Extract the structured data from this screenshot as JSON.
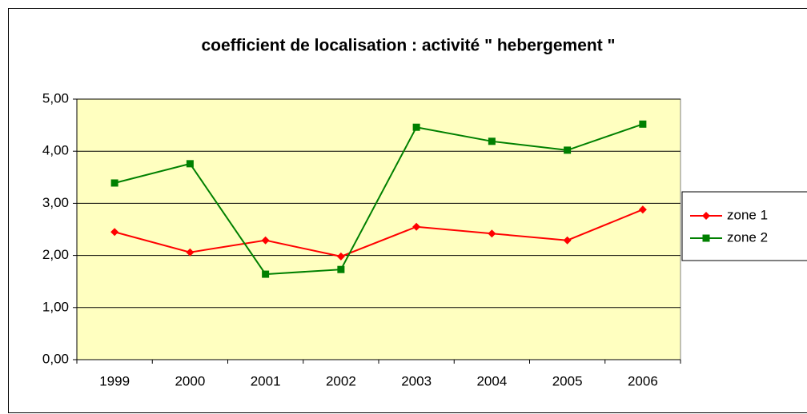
{
  "chart_data": {
    "type": "line",
    "title": "coefficient de localisation : activité \" hebergement \"",
    "categories": [
      "1999",
      "2000",
      "2001",
      "2002",
      "2003",
      "2004",
      "2005",
      "2006"
    ],
    "series": [
      {
        "name": "zone 1",
        "color": "#ff0000",
        "marker": "diamond",
        "values": [
          2.45,
          2.06,
          2.29,
          1.98,
          2.55,
          2.42,
          2.29,
          2.88
        ]
      },
      {
        "name": "zone 2",
        "color": "#008000",
        "marker": "square",
        "values": [
          3.39,
          3.76,
          1.64,
          1.73,
          4.46,
          4.19,
          4.02,
          4.52
        ]
      }
    ],
    "ylim": [
      0,
      5
    ],
    "yticks": [
      {
        "value": 0,
        "label": "0,00"
      },
      {
        "value": 1,
        "label": "1,00"
      },
      {
        "value": 2,
        "label": "2,00"
      },
      {
        "value": 3,
        "label": "3,00"
      },
      {
        "value": 4,
        "label": "4,00"
      },
      {
        "value": 5,
        "label": "5,00"
      }
    ],
    "grid": true,
    "plot_background": "#ffffc0",
    "legend": "right"
  }
}
